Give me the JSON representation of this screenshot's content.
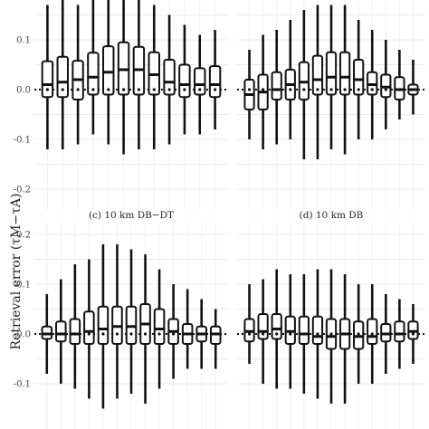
{
  "ylabel": "Retrieval error (τM−τA)",
  "chart_data": [
    {
      "type": "box",
      "title": "",
      "ylim": [
        -0.22,
        0.19
      ],
      "yticks": [
        -0.2,
        -0.1,
        0.0,
        0.1
      ],
      "ytick_labels": [
        "-0.2",
        "-0.1",
        "0.0",
        "0.1"
      ],
      "hline": 0.0,
      "boxes": [
        {
          "low": -0.12,
          "q1": -0.015,
          "median": 0.01,
          "mean": 0.0,
          "q3": 0.057,
          "high": 0.17
        },
        {
          "low": -0.12,
          "q1": -0.015,
          "median": 0.015,
          "mean": 0.0,
          "q3": 0.066,
          "high": 0.18
        },
        {
          "low": -0.11,
          "q1": -0.02,
          "median": 0.02,
          "mean": 0.0,
          "q3": 0.058,
          "high": 0.17
        },
        {
          "low": -0.09,
          "q1": -0.01,
          "median": 0.025,
          "mean": 0.0,
          "q3": 0.074,
          "high": 0.18
        },
        {
          "low": -0.11,
          "q1": -0.01,
          "median": 0.035,
          "mean": 0.0,
          "q3": 0.087,
          "high": 0.18
        },
        {
          "low": -0.13,
          "q1": -0.01,
          "median": 0.04,
          "mean": 0.0,
          "q3": 0.095,
          "high": 0.19
        },
        {
          "low": -0.12,
          "q1": -0.01,
          "median": 0.04,
          "mean": 0.0,
          "q3": 0.086,
          "high": 0.18
        },
        {
          "low": -0.12,
          "q1": -0.01,
          "median": 0.03,
          "mean": 0.0,
          "q3": 0.075,
          "high": 0.17
        },
        {
          "low": -0.11,
          "q1": -0.01,
          "median": 0.015,
          "mean": 0.0,
          "q3": 0.06,
          "high": 0.15
        },
        {
          "low": -0.09,
          "q1": -0.015,
          "median": 0.01,
          "mean": 0.0,
          "q3": 0.05,
          "high": 0.13
        },
        {
          "low": -0.09,
          "q1": -0.01,
          "median": 0.01,
          "mean": 0.0,
          "q3": 0.043,
          "high": 0.11
        },
        {
          "low": -0.08,
          "q1": -0.015,
          "median": 0.01,
          "mean": 0.0,
          "q3": 0.047,
          "high": 0.12
        }
      ]
    },
    {
      "type": "box",
      "title": "",
      "ylim": [
        -0.22,
        0.19
      ],
      "hline": 0.0,
      "boxes": [
        {
          "low": -0.1,
          "q1": -0.04,
          "median": -0.01,
          "mean": 0.0,
          "q3": 0.02,
          "high": 0.08
        },
        {
          "low": -0.12,
          "q1": -0.04,
          "median": -0.005,
          "mean": 0.0,
          "q3": 0.03,
          "high": 0.11
        },
        {
          "low": -0.11,
          "q1": -0.02,
          "median": 0.0,
          "mean": 0.0,
          "q3": 0.035,
          "high": 0.12
        },
        {
          "low": -0.1,
          "q1": -0.02,
          "median": 0.01,
          "mean": 0.0,
          "q3": 0.04,
          "high": 0.14
        },
        {
          "low": -0.14,
          "q1": -0.02,
          "median": 0.015,
          "mean": 0.0,
          "q3": 0.055,
          "high": 0.16
        },
        {
          "low": -0.14,
          "q1": -0.01,
          "median": 0.02,
          "mean": 0.0,
          "q3": 0.068,
          "high": 0.17
        },
        {
          "low": -0.12,
          "q1": -0.01,
          "median": 0.025,
          "mean": 0.0,
          "q3": 0.075,
          "high": 0.17
        },
        {
          "low": -0.13,
          "q1": -0.01,
          "median": 0.025,
          "mean": 0.0,
          "q3": 0.075,
          "high": 0.17
        },
        {
          "low": -0.1,
          "q1": -0.01,
          "median": 0.02,
          "mean": 0.0,
          "q3": 0.06,
          "high": 0.14
        },
        {
          "low": -0.1,
          "q1": -0.01,
          "median": 0.01,
          "mean": 0.0,
          "q3": 0.035,
          "high": 0.12
        },
        {
          "low": -0.08,
          "q1": -0.015,
          "median": 0.005,
          "mean": 0.0,
          "q3": 0.03,
          "high": 0.1
        },
        {
          "low": -0.06,
          "q1": -0.02,
          "median": 0.0,
          "mean": 0.0,
          "q3": 0.025,
          "high": 0.08
        },
        {
          "low": -0.05,
          "q1": -0.01,
          "median": 0.0,
          "mean": 0.0,
          "q3": 0.01,
          "high": 0.06
        }
      ]
    },
    {
      "type": "box",
      "title": "(c) 10 km DB−DT",
      "ylim": [
        -0.15,
        0.235
      ],
      "yticks": [
        -0.1,
        0.0,
        0.1,
        0.2
      ],
      "ytick_labels": [
        "-0.1",
        "0.0",
        "0.1",
        "0.2"
      ],
      "hline": 0.0,
      "boxes": [
        {
          "low": -0.08,
          "q1": -0.01,
          "median": 0.0,
          "mean": 0.0,
          "q3": 0.015,
          "high": 0.08
        },
        {
          "low": -0.1,
          "q1": -0.015,
          "median": 0.0,
          "mean": 0.0,
          "q3": 0.025,
          "high": 0.11
        },
        {
          "low": -0.11,
          "q1": -0.02,
          "median": 0.0,
          "mean": 0.0,
          "q3": 0.03,
          "high": 0.14
        },
        {
          "low": -0.13,
          "q1": -0.02,
          "median": 0.005,
          "mean": 0.0,
          "q3": 0.045,
          "high": 0.15
        },
        {
          "low": -0.15,
          "q1": -0.02,
          "median": 0.01,
          "mean": 0.0,
          "q3": 0.055,
          "high": 0.18
        },
        {
          "low": -0.13,
          "q1": -0.02,
          "median": 0.015,
          "mean": 0.0,
          "q3": 0.055,
          "high": 0.18
        },
        {
          "low": -0.12,
          "q1": -0.02,
          "median": 0.015,
          "mean": 0.0,
          "q3": 0.055,
          "high": 0.17
        },
        {
          "low": -0.14,
          "q1": -0.02,
          "median": 0.02,
          "mean": 0.0,
          "q3": 0.06,
          "high": 0.16
        },
        {
          "low": -0.11,
          "q1": -0.02,
          "median": 0.01,
          "mean": 0.0,
          "q3": 0.05,
          "high": 0.13
        },
        {
          "low": -0.09,
          "q1": -0.02,
          "median": 0.005,
          "mean": 0.0,
          "q3": 0.03,
          "high": 0.1
        },
        {
          "low": -0.07,
          "q1": -0.02,
          "median": 0.0,
          "mean": 0.0,
          "q3": 0.02,
          "high": 0.09
        },
        {
          "low": -0.07,
          "q1": -0.015,
          "median": 0.0,
          "mean": 0.0,
          "q3": 0.015,
          "high": 0.07
        },
        {
          "low": -0.07,
          "q1": -0.02,
          "median": 0.0,
          "mean": 0.0,
          "q3": 0.015,
          "high": 0.05
        }
      ]
    },
    {
      "type": "box",
      "title": "(d) 10 km DB",
      "ylim": [
        -0.15,
        0.235
      ],
      "hline": 0.0,
      "boxes": [
        {
          "low": -0.06,
          "q1": -0.015,
          "median": 0.005,
          "mean": 0.0,
          "q3": 0.03,
          "high": 0.1
        },
        {
          "low": -0.1,
          "q1": -0.01,
          "median": 0.005,
          "mean": 0.0,
          "q3": 0.04,
          "high": 0.11
        },
        {
          "low": -0.11,
          "q1": -0.01,
          "median": 0.01,
          "mean": 0.0,
          "q3": 0.04,
          "high": 0.13
        },
        {
          "low": -0.11,
          "q1": -0.02,
          "median": 0.005,
          "mean": 0.0,
          "q3": 0.035,
          "high": 0.12
        },
        {
          "low": -0.12,
          "q1": -0.02,
          "median": 0.0,
          "mean": 0.0,
          "q3": 0.035,
          "high": 0.12
        },
        {
          "low": -0.13,
          "q1": -0.02,
          "median": -0.005,
          "mean": 0.0,
          "q3": 0.035,
          "high": 0.13
        },
        {
          "low": -0.14,
          "q1": -0.03,
          "median": -0.005,
          "mean": 0.0,
          "q3": 0.03,
          "high": 0.13
        },
        {
          "low": -0.14,
          "q1": -0.03,
          "median": 0.0,
          "mean": 0.0,
          "q3": 0.03,
          "high": 0.12
        },
        {
          "low": -0.1,
          "q1": -0.03,
          "median": -0.005,
          "mean": 0.0,
          "q3": 0.025,
          "high": 0.1
        },
        {
          "low": -0.1,
          "q1": -0.02,
          "median": -0.005,
          "mean": 0.0,
          "q3": 0.03,
          "high": 0.1
        },
        {
          "low": -0.08,
          "q1": -0.015,
          "median": 0.0,
          "mean": 0.0,
          "q3": 0.02,
          "high": 0.08
        },
        {
          "low": -0.07,
          "q1": -0.015,
          "median": 0.0,
          "mean": 0.0,
          "q3": 0.025,
          "high": 0.07
        },
        {
          "low": -0.06,
          "q1": -0.01,
          "median": 0.005,
          "mean": 0.0,
          "q3": 0.025,
          "high": 0.06
        }
      ]
    }
  ]
}
